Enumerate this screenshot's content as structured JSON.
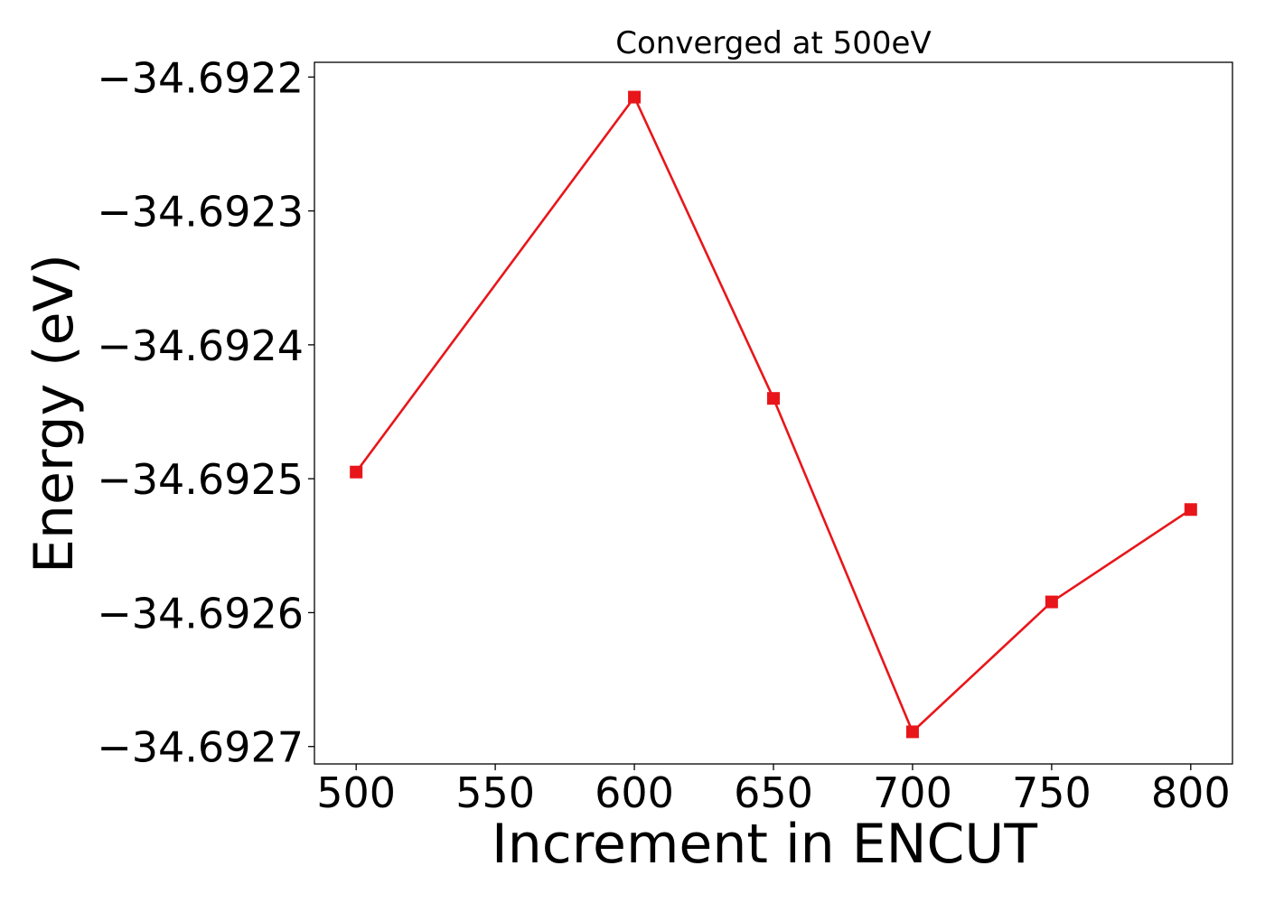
{
  "chart_data": {
    "type": "line",
    "title": "Converged at 500eV",
    "xlabel": "Increment in ENCUT",
    "ylabel": "Energy (eV)",
    "x": [
      500,
      600,
      650,
      700,
      750,
      800
    ],
    "series": [
      {
        "values": [
          -34.692495,
          -34.692215,
          -34.69244,
          -34.692689,
          -34.692592,
          -34.692523
        ],
        "color": "#e8161b",
        "marker": "square"
      }
    ],
    "xlim": [
      485,
      815
    ],
    "ylim": [
      -34.692713,
      -34.692189
    ],
    "xticks": [
      500,
      550,
      600,
      650,
      700,
      750,
      800
    ],
    "xtick_labels": [
      "500",
      "550",
      "600",
      "650",
      "700",
      "750",
      "800"
    ],
    "yticks": [
      -34.6927,
      -34.6926,
      -34.6925,
      -34.6924,
      -34.6923,
      -34.6922
    ],
    "ytick_labels": [
      "−34.6927",
      "−34.6926",
      "−34.6925",
      "−34.6924",
      "−34.6923",
      "−34.6922"
    ],
    "grid": false,
    "legend": null
  }
}
